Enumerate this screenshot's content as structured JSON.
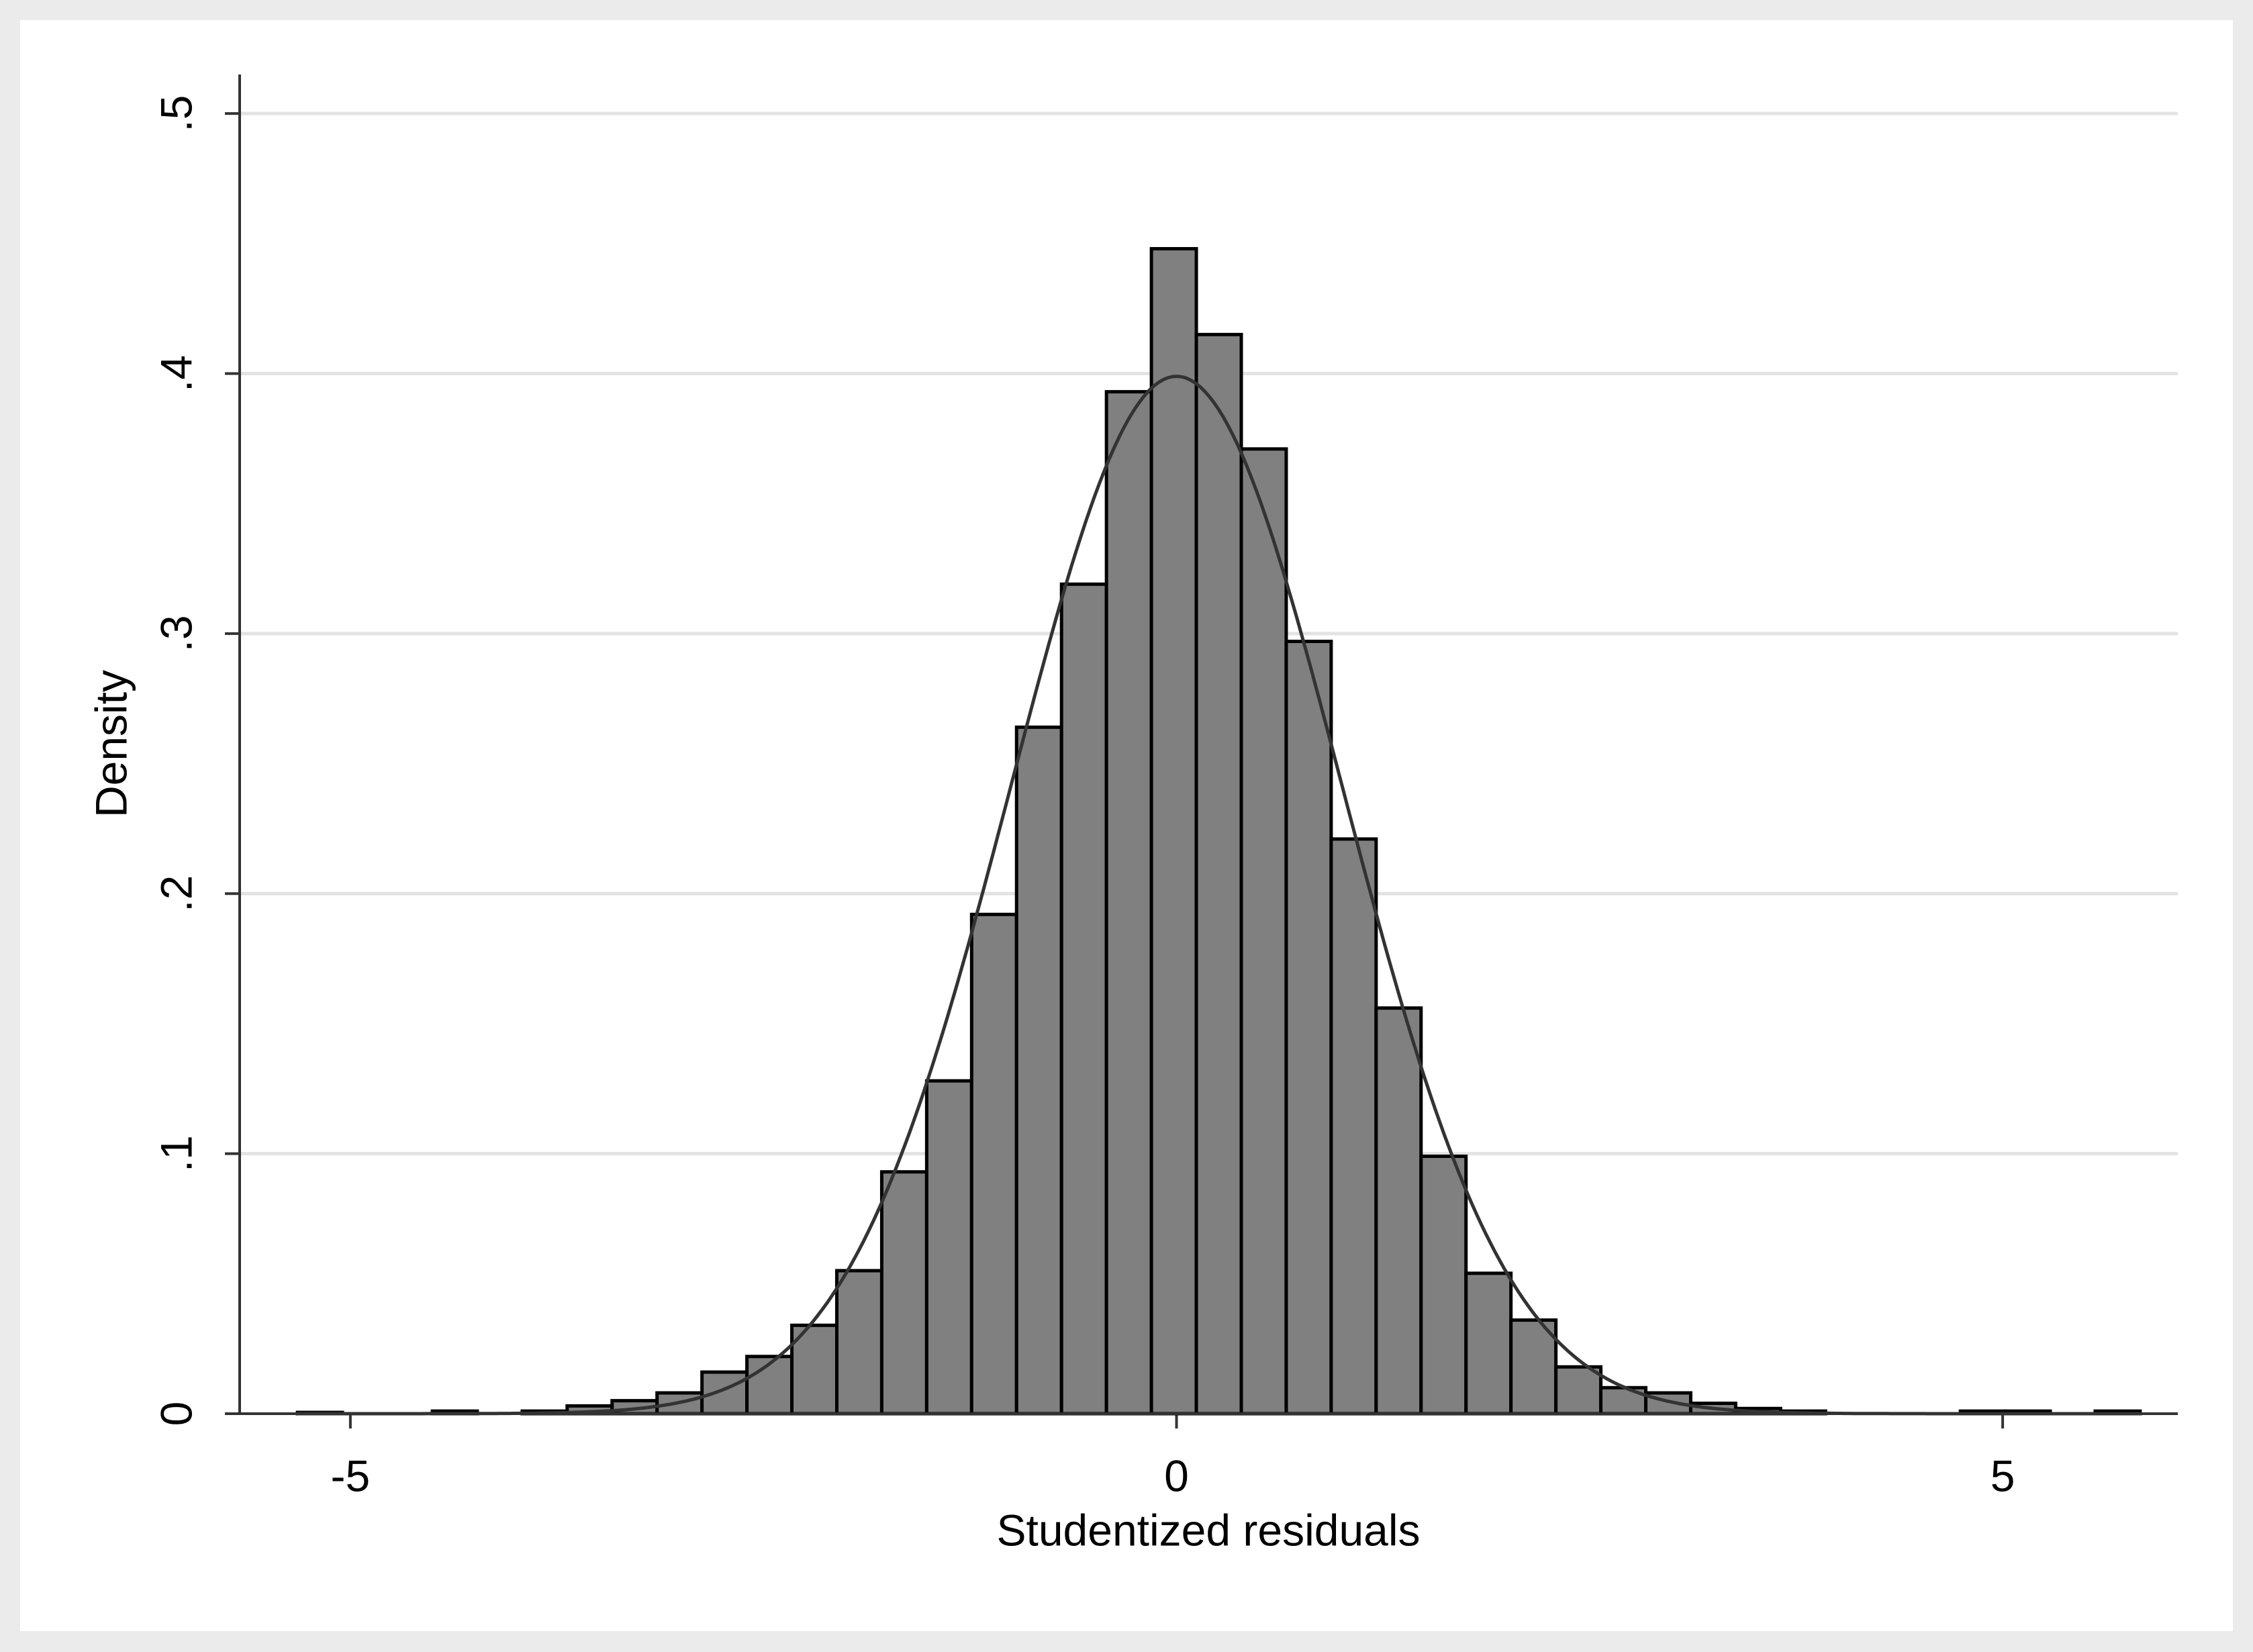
{
  "chart_data": {
    "type": "histogram",
    "x_label": "Studentized residuals",
    "y_label": "Density",
    "bins": [
      -5.32,
      -5.048,
      -4.776,
      -4.504,
      -4.232,
      -3.96,
      -3.688,
      -3.416,
      -3.144,
      -2.872,
      -2.6,
      -2.328,
      -2.056,
      -1.784,
      -1.512,
      -1.24,
      -0.968,
      -0.696,
      -0.424,
      -0.152,
      0.12,
      0.392,
      0.664,
      0.936,
      1.208,
      1.48,
      1.752,
      2.024,
      2.296,
      2.568,
      2.84,
      3.112,
      3.384,
      3.656,
      3.928,
      4.2,
      4.472,
      4.744,
      5.016,
      5.288,
      5.56,
      5.832
    ],
    "values": [
      0.0005,
      0,
      0,
      0.001,
      0,
      0.001,
      0.003,
      0.005,
      0.008,
      0.016,
      0.022,
      0.034,
      0.055,
      0.093,
      0.128,
      0.192,
      0.264,
      0.319,
      0.393,
      0.448,
      0.415,
      0.371,
      0.297,
      0.221,
      0.156,
      0.099,
      0.054,
      0.036,
      0.018,
      0.01,
      0.008,
      0.004,
      0.002,
      0.001,
      0,
      0,
      0,
      0.001,
      0.001,
      0,
      0.001
    ],
    "color": "#808080",
    "normal_curve": {
      "mean": 0,
      "sd": 1,
      "color": "#333333"
    },
    "xlim": [
      -5.67,
      6.06
    ],
    "xticks": [
      -5,
      0,
      5
    ],
    "ylim": [
      0,
      0.515
    ],
    "yticks": [
      0,
      {
        "value": 0.1,
        "label": ".1"
      },
      {
        "value": 0.2,
        "label": ".2"
      },
      {
        "value": 0.3,
        "label": ".3"
      },
      {
        "value": 0.4,
        "label": ".4"
      },
      {
        "value": 0.5,
        "label": ".5"
      }
    ],
    "grid": true
  }
}
